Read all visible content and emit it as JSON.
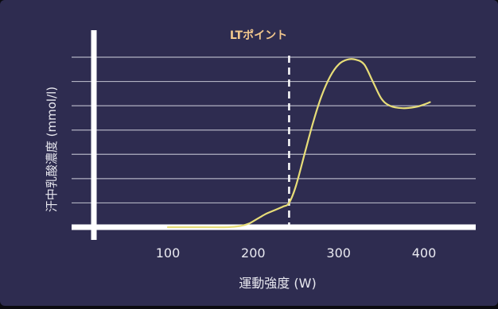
{
  "colors": {
    "panel_bg": "#2e2c50",
    "axis": "#ffffff",
    "grid": "#c9c9d6",
    "curve": "#e7dd78",
    "annotation": "#f2c78d",
    "text": "#e9e9f0",
    "marker": "#ffffff"
  },
  "chart_data": {
    "type": "line",
    "title": "",
    "xlabel": "運動強度 (W)",
    "ylabel": "汗中乳酸濃度 (mmol/l)",
    "xlim": [
      80,
      450
    ],
    "ylim": [
      0,
      7
    ],
    "x_ticks": [
      100,
      200,
      300,
      400
    ],
    "x_tick_labels": [
      "100",
      "200",
      "300",
      "400"
    ],
    "y_ticks_labeled": false,
    "grid": "horizontal",
    "legend": "none",
    "series": [
      {
        "x": [
          100,
          140,
          170,
          185,
          195,
          205,
          215,
          225,
          235,
          242,
          250,
          260,
          270,
          280,
          290,
          300,
          310,
          320,
          330,
          340,
          350,
          360,
          375,
          390,
          400,
          407
        ],
        "y": [
          0.0,
          0.0,
          0.0,
          0.05,
          0.15,
          0.35,
          0.55,
          0.7,
          0.85,
          1.0,
          1.7,
          3.0,
          4.3,
          5.4,
          6.2,
          6.7,
          6.9,
          6.9,
          6.7,
          6.0,
          5.3,
          5.0,
          4.9,
          4.95,
          5.05,
          5.15
        ]
      }
    ],
    "annotations": [
      {
        "type": "vline",
        "x": 242,
        "style": "dashed",
        "label": "LTポイント"
      }
    ]
  }
}
